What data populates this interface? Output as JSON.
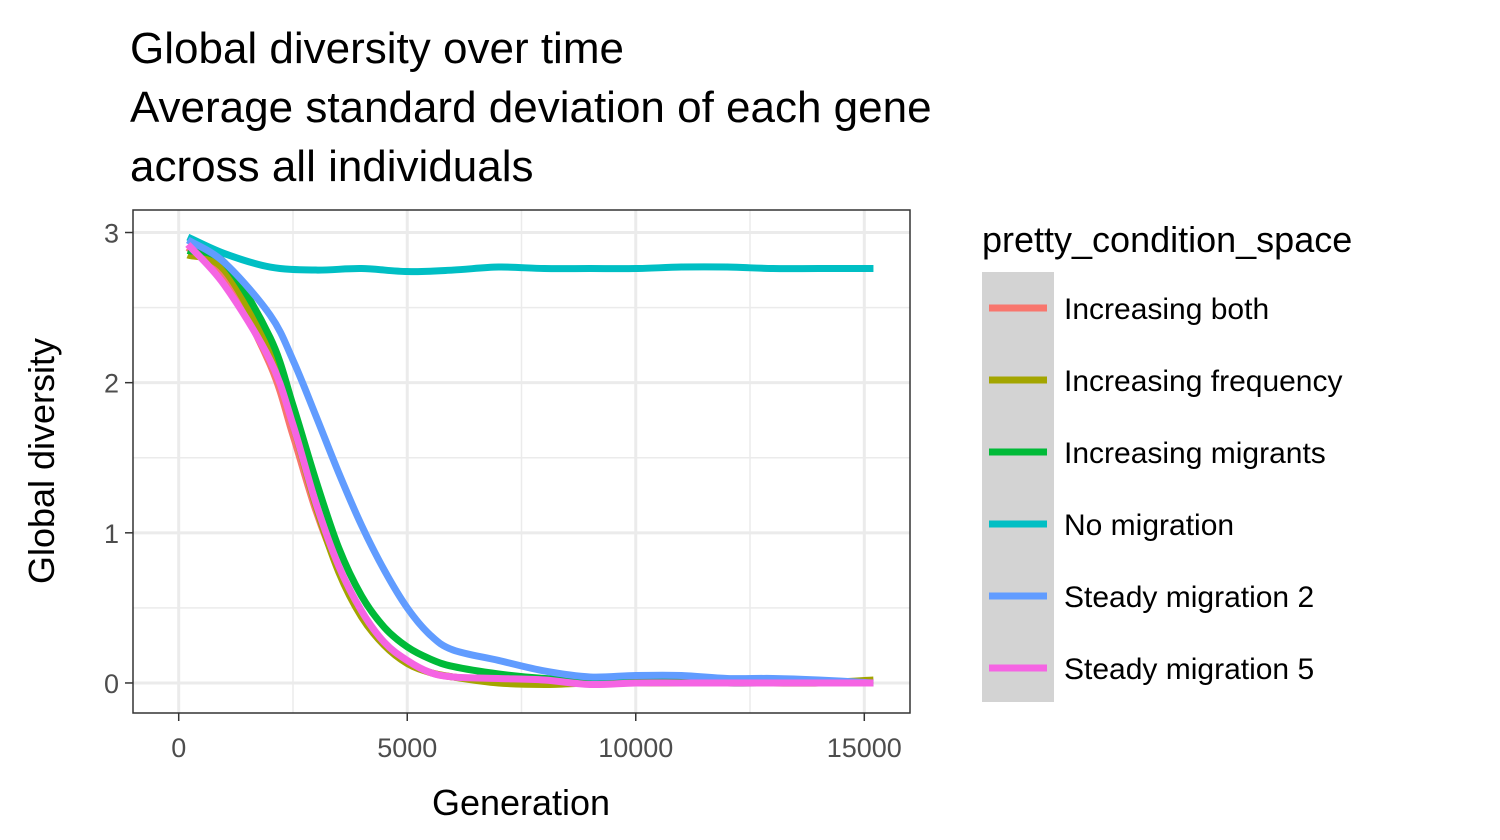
{
  "chart_data": {
    "type": "line",
    "title_lines": [
      "Global diversity over time",
      "Average standard deviation of each gene",
      "across all individuals"
    ],
    "xlabel": "Generation",
    "ylabel": "Global diversity",
    "xlim": [
      -1000,
      16000
    ],
    "ylim": [
      -0.2,
      3.15
    ],
    "x_ticks": [
      0,
      5000,
      10000,
      15000
    ],
    "x_tick_labels": [
      "0",
      "5000",
      "10000",
      "15000"
    ],
    "y_ticks": [
      0,
      1,
      2,
      3
    ],
    "y_tick_labels": [
      "0",
      "1",
      "2",
      "3"
    ],
    "grid": true,
    "legend": {
      "title": "pretty_condition_space",
      "position": "right"
    },
    "series": [
      {
        "name": "Increasing both",
        "color": "#F8766D",
        "x": [
          200,
          1000,
          2000,
          2500,
          3000,
          3500,
          4000,
          4500,
          5000,
          5500,
          6000,
          7000,
          8000,
          9000,
          10000,
          11000,
          12000,
          13000,
          14000,
          15200
        ],
        "y": [
          2.9,
          2.7,
          2.12,
          1.65,
          1.15,
          0.76,
          0.46,
          0.26,
          0.14,
          0.07,
          0.04,
          0.01,
          0.0,
          0.0,
          0.0,
          0.0,
          0.0,
          0.0,
          0.0,
          0.0
        ]
      },
      {
        "name": "Increasing frequency",
        "color": "#A3A500",
        "x": [
          200,
          1000,
          2000,
          2500,
          3000,
          3500,
          4000,
          4500,
          5000,
          5500,
          6000,
          7000,
          8000,
          9000,
          10000,
          11000,
          12000,
          13000,
          14000,
          15200
        ],
        "y": [
          2.85,
          2.75,
          2.2,
          1.72,
          1.18,
          0.74,
          0.44,
          0.25,
          0.13,
          0.07,
          0.04,
          0.0,
          -0.01,
          0.0,
          0.0,
          0.0,
          0.0,
          0.0,
          0.0,
          0.02
        ]
      },
      {
        "name": "Increasing migrants",
        "color": "#00BA38",
        "x": [
          200,
          1000,
          2000,
          2500,
          3000,
          3500,
          4000,
          4500,
          5000,
          5500,
          6000,
          7000,
          8000,
          9000,
          10000,
          11000,
          12000,
          13000,
          14000,
          15200
        ],
        "y": [
          2.88,
          2.8,
          2.3,
          1.85,
          1.35,
          0.9,
          0.58,
          0.37,
          0.24,
          0.16,
          0.11,
          0.06,
          0.03,
          0.02,
          0.01,
          0.01,
          0.0,
          0.0,
          0.0,
          0.0
        ]
      },
      {
        "name": "No migration",
        "color": "#00BFC4",
        "x": [
          200,
          1000,
          2000,
          3000,
          4000,
          5000,
          6000,
          7000,
          8000,
          9000,
          10000,
          11000,
          12000,
          13000,
          14000,
          15200
        ],
        "y": [
          2.97,
          2.86,
          2.77,
          2.75,
          2.76,
          2.74,
          2.75,
          2.77,
          2.76,
          2.76,
          2.76,
          2.77,
          2.77,
          2.76,
          2.76,
          2.76
        ]
      },
      {
        "name": "Steady migration 2",
        "color": "#619CFF",
        "x": [
          200,
          1000,
          2000,
          2500,
          3000,
          3500,
          4000,
          4500,
          5000,
          5500,
          6000,
          7000,
          8000,
          9000,
          10000,
          11000,
          12000,
          13000,
          14000,
          15200
        ],
        "y": [
          2.95,
          2.8,
          2.45,
          2.15,
          1.78,
          1.4,
          1.05,
          0.75,
          0.5,
          0.32,
          0.22,
          0.15,
          0.08,
          0.04,
          0.05,
          0.05,
          0.03,
          0.03,
          0.02,
          0.0
        ]
      },
      {
        "name": "Steady migration 5",
        "color": "#F564E3",
        "x": [
          200,
          1000,
          2000,
          2500,
          3000,
          3500,
          4000,
          4500,
          5000,
          5500,
          6000,
          7000,
          8000,
          9000,
          10000,
          11000,
          12000,
          13000,
          14000,
          15200
        ],
        "y": [
          2.92,
          2.65,
          2.15,
          1.72,
          1.2,
          0.78,
          0.48,
          0.27,
          0.15,
          0.07,
          0.04,
          0.03,
          0.02,
          -0.01,
          0.0,
          0.0,
          0.0,
          0.0,
          0.0,
          0.0
        ]
      }
    ]
  }
}
